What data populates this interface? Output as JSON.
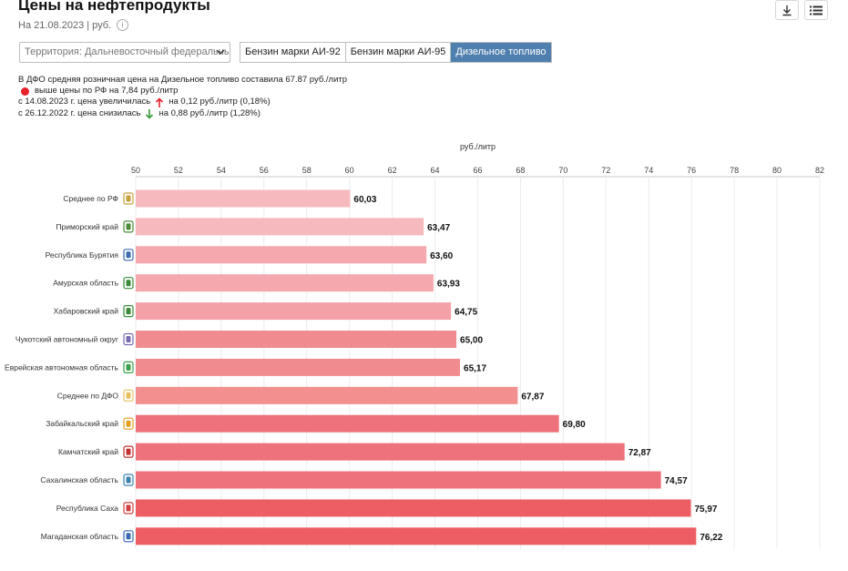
{
  "header": {
    "title": "Цены на нефтепродукты",
    "subtitle": "На 21.08.2023 | руб.",
    "info_icon": "info-icon",
    "download_icon": "download-icon",
    "menu_icon": "menu-icon"
  },
  "controls": {
    "territory_select": "Территория: Дальневосточный федеральный округ",
    "tabs": [
      {
        "label": "Бензин марки АИ-92",
        "active": false
      },
      {
        "label": "Бензин марки АИ-95",
        "active": false
      },
      {
        "label": "Дизельное топливо",
        "active": true
      }
    ]
  },
  "summary": {
    "line1": "В ДФО средняя розничная цена на Дизельное топливо составила 67.87 руб./литр",
    "line2": "выше цены по РФ на 7,84 руб./литр",
    "line3_a": "с 14.08.2023 г. цена увеличилась",
    "line3_b": "на 0,12 руб./литр (0,18%)",
    "line4_a": "с 26.12.2022 г. цена снизилась",
    "line4_b": "на 0,88 руб./литр (1,28%)",
    "up_color": "#e8202a",
    "down_color": "#3a9a3a"
  },
  "chart_data": {
    "type": "bar",
    "orientation": "horizontal",
    "xlabel": "руб./литр",
    "xlim": [
      50,
      82
    ],
    "xticks": [
      50,
      52,
      54,
      56,
      58,
      60,
      62,
      64,
      66,
      68,
      70,
      72,
      74,
      76,
      78,
      80,
      82
    ],
    "grid": true,
    "categories": [
      "Среднее по РФ",
      "Приморский край",
      "Республика Бурятия",
      "Амурская область",
      "Хабаровский край",
      "Чукотский автономный округ",
      "Еврейская автономная область",
      "Среднее по ДФО",
      "Забайкальский край",
      "Камчатский край",
      "Сахалинская область",
      "Республика Саха",
      "Магаданская область"
    ],
    "values": [
      60.03,
      63.47,
      63.6,
      63.93,
      64.75,
      65.0,
      65.17,
      67.87,
      69.8,
      72.87,
      74.57,
      75.97,
      76.22
    ],
    "value_labels": [
      "60,03",
      "63,47",
      "63,60",
      "63,93",
      "64,75",
      "65,00",
      "65,17",
      "67,87",
      "69,80",
      "72,87",
      "74,57",
      "75,97",
      "76,22"
    ],
    "colors": [
      "#f6b9bd",
      "#f6b9bd",
      "#f5a8ae",
      "#f5a8ae",
      "#f3a0a7",
      "#f08c90",
      "#f08c90",
      "#f1908e",
      "#ee727c",
      "#ee727c",
      "#ee727c",
      "#ec5e63",
      "#ec5e63"
    ],
    "emblem_colors": [
      "#c8a03a",
      "#4a8a3a",
      "#3a6ab0",
      "#3a8a3a",
      "#3a8a3a",
      "#7a6ab0",
      "#3aa04a",
      "#e8c060",
      "#e0a020",
      "#c03030",
      "#3a80b0",
      "#d04040",
      "#3a6ab0"
    ]
  }
}
